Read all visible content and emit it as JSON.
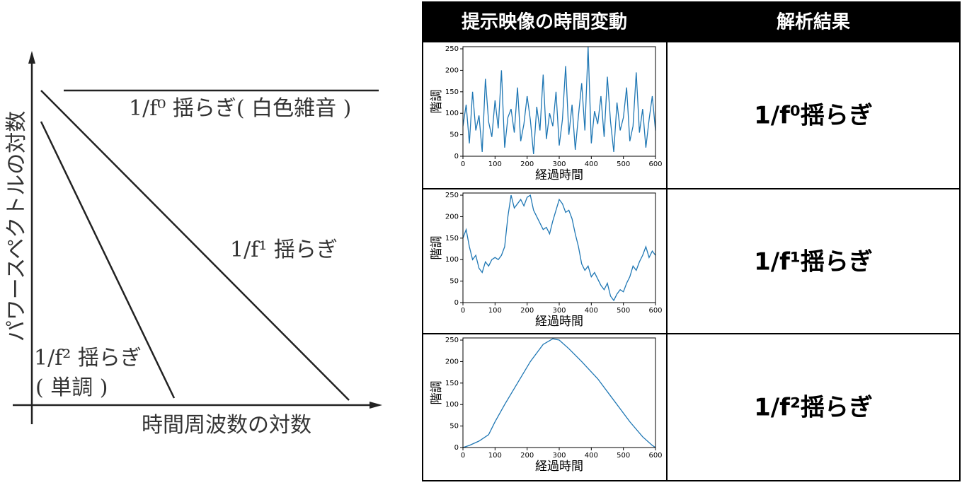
{
  "diagram": {
    "y_label": "パワースペクトルの対数",
    "x_label": "時間周波数の対数",
    "lines": [
      {
        "label": "1/f⁰ 揺らぎ( 白色雑音 )"
      },
      {
        "label": "1/f¹ 揺らぎ"
      },
      {
        "label": "1/f² 揺らぎ",
        "note": "( 単調 )"
      }
    ]
  },
  "table": {
    "headers": [
      "提示映像の時間変動",
      "解析結果"
    ],
    "results": [
      "1/f⁰揺らぎ",
      "1/f¹揺らぎ",
      "1/f²揺らぎ"
    ]
  },
  "chart_data": [
    {
      "type": "line",
      "xlabel": "経過時間",
      "ylabel": "階調",
      "color": "#1f77b4",
      "x": [
        0,
        10,
        20,
        30,
        40,
        50,
        60,
        70,
        80,
        90,
        100,
        110,
        120,
        130,
        140,
        150,
        160,
        170,
        180,
        190,
        200,
        210,
        220,
        230,
        240,
        250,
        260,
        270,
        280,
        290,
        300,
        310,
        320,
        330,
        340,
        350,
        360,
        370,
        380,
        390,
        400,
        410,
        420,
        430,
        440,
        450,
        460,
        470,
        480,
        490,
        500,
        510,
        520,
        530,
        540,
        550,
        560,
        570,
        580,
        590,
        600
      ],
      "values": [
        70,
        120,
        30,
        150,
        60,
        95,
        10,
        180,
        80,
        45,
        130,
        65,
        200,
        20,
        90,
        110,
        55,
        160,
        35,
        75,
        140,
        85,
        5,
        115,
        60,
        190,
        40,
        100,
        70,
        150,
        25,
        85,
        210,
        50,
        120,
        15,
        95,
        170,
        60,
        255,
        30,
        105,
        75,
        140,
        45,
        185,
        80,
        10,
        125,
        60,
        90,
        160,
        35,
        70,
        195,
        55,
        110,
        20,
        85,
        140,
        60
      ],
      "xlim": [
        0,
        600
      ],
      "ylim": [
        0,
        255
      ],
      "xticks": [
        0,
        100,
        200,
        300,
        400,
        500,
        600
      ],
      "yticks": [
        0,
        50,
        100,
        150,
        200,
        250
      ]
    },
    {
      "type": "line",
      "xlabel": "経過時間",
      "ylabel": "階調",
      "color": "#1f77b4",
      "x": [
        0,
        10,
        20,
        30,
        40,
        50,
        60,
        70,
        80,
        90,
        100,
        110,
        120,
        130,
        140,
        150,
        160,
        170,
        180,
        190,
        200,
        210,
        220,
        230,
        240,
        250,
        260,
        270,
        280,
        290,
        300,
        310,
        320,
        330,
        340,
        350,
        360,
        370,
        380,
        390,
        400,
        410,
        420,
        430,
        440,
        450,
        460,
        470,
        480,
        490,
        500,
        510,
        520,
        530,
        540,
        550,
        560,
        570,
        580,
        590,
        600
      ],
      "values": [
        150,
        170,
        130,
        100,
        110,
        80,
        70,
        95,
        85,
        100,
        105,
        100,
        110,
        130,
        200,
        250,
        220,
        230,
        240,
        225,
        245,
        250,
        215,
        200,
        185,
        170,
        175,
        160,
        190,
        215,
        240,
        230,
        210,
        215,
        195,
        160,
        130,
        90,
        75,
        85,
        60,
        70,
        55,
        40,
        30,
        45,
        15,
        5,
        20,
        30,
        25,
        45,
        60,
        85,
        75,
        95,
        110,
        130,
        105,
        120,
        110
      ],
      "xlim": [
        0,
        600
      ],
      "ylim": [
        0,
        255
      ],
      "xticks": [
        0,
        100,
        200,
        300,
        400,
        500,
        600
      ],
      "yticks": [
        0,
        50,
        100,
        150,
        200,
        250
      ]
    },
    {
      "type": "line",
      "xlabel": "経過時間",
      "ylabel": "階調",
      "color": "#1f77b4",
      "x": [
        0,
        20,
        50,
        80,
        100,
        130,
        170,
        210,
        250,
        280,
        300,
        330,
        370,
        420,
        460,
        490,
        520,
        560,
        590,
        600
      ],
      "values": [
        0,
        5,
        15,
        30,
        60,
        100,
        150,
        200,
        240,
        253,
        250,
        230,
        200,
        160,
        120,
        90,
        60,
        25,
        5,
        0
      ],
      "xlim": [
        0,
        600
      ],
      "ylim": [
        0,
        255
      ],
      "xticks": [
        0,
        100,
        200,
        300,
        400,
        500,
        600
      ],
      "yticks": [
        0,
        50,
        100,
        150,
        200,
        250
      ]
    }
  ]
}
